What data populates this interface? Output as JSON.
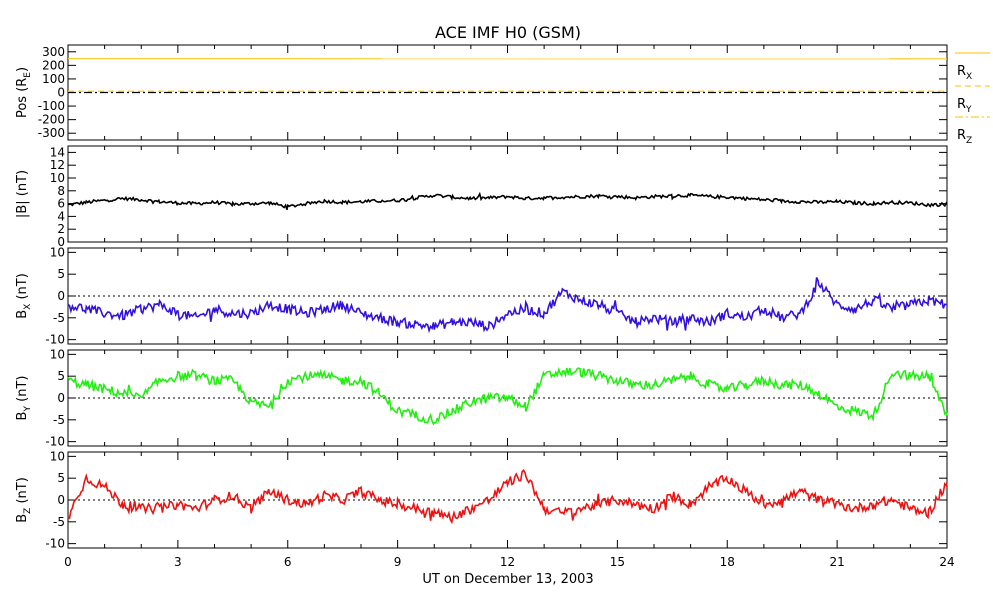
{
  "title": "ACE IMF H0 (GSM)",
  "x_axis": {
    "label": "UT on December 13, 2003",
    "ticks": [
      "0",
      "3",
      "6",
      "9",
      "12",
      "15",
      "18",
      "21",
      "24"
    ],
    "range": [
      0,
      24
    ]
  },
  "legend": {
    "items": [
      {
        "label": "R",
        "sub": "X",
        "style": "solid",
        "color": "#ffcc33"
      },
      {
        "label": "R",
        "sub": "Y",
        "style": "dashed",
        "color": "#ffcc33"
      },
      {
        "label": "R",
        "sub": "Z",
        "style": "dashdot",
        "color": "#ffcc33"
      }
    ]
  },
  "panels": [
    {
      "id": "pos",
      "ylabel_main": "Pos (R",
      "ylabel_sub": "E",
      "ylabel_end": ")",
      "ylim": [
        -350,
        350
      ],
      "yticks": [
        "300",
        "200",
        "100",
        "0",
        "-100",
        "-200",
        "-300"
      ],
      "ytick_values": [
        300,
        200,
        100,
        0,
        -100,
        -200,
        -300
      ],
      "color": "#ffcc33",
      "zero_line": false
    },
    {
      "id": "bmag",
      "ylabel_main": "|B| (nT)",
      "ylabel_sub": "",
      "ylabel_end": "",
      "ylim": [
        0,
        15
      ],
      "yticks": [
        "14",
        "12",
        "10",
        "8",
        "6",
        "4",
        "2",
        "0"
      ],
      "ytick_values": [
        14,
        12,
        10,
        8,
        6,
        4,
        2,
        0
      ],
      "color": "#000000",
      "zero_line": false
    },
    {
      "id": "bx",
      "ylabel_main": "B",
      "ylabel_sub": "X",
      "ylabel_end": " (nT)",
      "ylim": [
        -11,
        11
      ],
      "yticks": [
        "10",
        "5",
        "0",
        "-5",
        "-10"
      ],
      "ytick_values": [
        10,
        5,
        0,
        -5,
        -10
      ],
      "color": "#3311dd",
      "zero_line": true
    },
    {
      "id": "by",
      "ylabel_main": "B",
      "ylabel_sub": "Y",
      "ylabel_end": " (nT)",
      "ylim": [
        -11,
        11
      ],
      "yticks": [
        "10",
        "5",
        "0",
        "-5",
        "-10"
      ],
      "ytick_values": [
        10,
        5,
        0,
        -5,
        -10
      ],
      "color": "#22ee11",
      "zero_line": true
    },
    {
      "id": "bz",
      "ylabel_main": "B",
      "ylabel_sub": "Z",
      "ylabel_end": " (nT)",
      "ylim": [
        -11,
        11
      ],
      "yticks": [
        "10",
        "5",
        "0",
        "-5",
        "-10"
      ],
      "ytick_values": [
        10,
        5,
        0,
        -5,
        -10
      ],
      "color": "#ee1111",
      "zero_line": true
    }
  ],
  "chart_data": {
    "type": "line",
    "title": "ACE IMF H0 (GSM)",
    "xlabel": "UT on December 13, 2003",
    "xlim": [
      0,
      24
    ],
    "grid": false,
    "legend_placement": "right of top panel",
    "series": [
      {
        "panel": "pos",
        "name": "RX",
        "style": "solid",
        "x": [
          0,
          24
        ],
        "values": [
          250,
          248
        ]
      },
      {
        "panel": "pos",
        "name": "RY",
        "style": "dashed",
        "x": [
          0,
          24
        ],
        "values": [
          10,
          10
        ]
      },
      {
        "panel": "pos",
        "name": "RZ",
        "style": "dashdot",
        "x": [
          0,
          24
        ],
        "values": [
          0,
          0
        ]
      },
      {
        "panel": "bmag",
        "x": [
          0,
          0.5,
          1,
          1.5,
          2,
          2.5,
          3,
          3.5,
          4,
          4.5,
          5,
          5.5,
          6,
          6.5,
          7,
          7.5,
          8,
          8.5,
          9,
          9.5,
          10,
          10.5,
          11,
          11.5,
          12,
          12.5,
          13,
          13.5,
          14,
          14.5,
          15,
          15.5,
          16,
          16.5,
          17,
          17.5,
          18,
          18.5,
          19,
          19.5,
          20,
          20.5,
          21,
          21.5,
          22,
          22.5,
          23,
          23.5,
          24
        ],
        "values": [
          5.8,
          6.2,
          6.5,
          6.8,
          6.6,
          6.3,
          6.1,
          6.0,
          6.2,
          5.9,
          6.0,
          6.1,
          5.5,
          6.0,
          6.4,
          6.2,
          6.3,
          6.4,
          6.5,
          6.9,
          7.3,
          7.0,
          6.8,
          6.9,
          7.1,
          6.8,
          6.9,
          7.0,
          7.1,
          7.2,
          7.1,
          6.9,
          7.1,
          7.2,
          7.3,
          7.1,
          7.0,
          6.8,
          6.6,
          6.4,
          6.3,
          6.2,
          6.3,
          6.1,
          6.0,
          6.2,
          6.1,
          5.8,
          5.9
        ]
      },
      {
        "panel": "bx",
        "x": [
          0,
          0.5,
          1,
          1.5,
          2,
          2.5,
          3,
          3.5,
          4,
          4.5,
          5,
          5.5,
          6,
          6.5,
          7,
          7.5,
          8,
          8.5,
          9,
          9.5,
          10,
          10.5,
          11,
          11.5,
          12,
          12.5,
          13,
          13.5,
          14,
          14.5,
          15,
          15.5,
          16,
          16.5,
          17,
          17.5,
          18,
          18.5,
          19,
          19.5,
          20,
          20.5,
          21,
          21.5,
          22,
          22.5,
          23,
          23.5,
          24
        ],
        "values": [
          -2,
          -3,
          -4,
          -4.5,
          -3,
          -2,
          -4,
          -5,
          -3,
          -4,
          -4,
          -2,
          -3,
          -4,
          -3,
          -2,
          -4,
          -5,
          -6,
          -6.5,
          -7,
          -6,
          -6,
          -7,
          -4,
          -3,
          -4,
          1,
          -1,
          -2,
          -4,
          -6,
          -5,
          -6,
          -5,
          -6,
          -4,
          -5,
          -3,
          -5,
          -4,
          3,
          -2,
          -3,
          -1,
          -3,
          -2,
          -1,
          -2
        ]
      },
      {
        "panel": "by",
        "x": [
          0,
          0.5,
          1,
          1.5,
          2,
          2.5,
          3,
          3.5,
          4,
          4.5,
          5,
          5.5,
          6,
          6.5,
          7,
          7.5,
          8,
          8.5,
          9,
          9.5,
          10,
          10.5,
          11,
          11.5,
          12,
          12.5,
          13,
          13.5,
          14,
          14.5,
          15,
          15.5,
          16,
          16.5,
          17,
          17.5,
          18,
          18.5,
          19,
          19.5,
          20,
          20.5,
          21,
          21.5,
          22,
          22.5,
          23,
          23.5,
          24
        ],
        "values": [
          4,
          3,
          2,
          1,
          0,
          4,
          5,
          5,
          4,
          4,
          -1,
          -2,
          4,
          5,
          5,
          4,
          4,
          1,
          -3,
          -4,
          -5,
          -3,
          -1,
          0,
          0,
          -2,
          5,
          6,
          6,
          5,
          4,
          3,
          3,
          4,
          5,
          3,
          2,
          3,
          4,
          3,
          3,
          1,
          -2,
          -3,
          -4,
          6,
          5,
          5,
          -4
        ]
      },
      {
        "panel": "bz",
        "x": [
          0,
          0.5,
          1,
          1.5,
          2,
          2.5,
          3,
          3.5,
          4,
          4.5,
          5,
          5.5,
          6,
          6.5,
          7,
          7.5,
          8,
          8.5,
          9,
          9.5,
          10,
          10.5,
          11,
          11.5,
          12,
          12.5,
          13,
          13.5,
          14,
          14.5,
          15,
          15.5,
          16,
          16.5,
          17,
          17.5,
          18,
          18.5,
          19,
          19.5,
          20,
          20.5,
          21,
          21.5,
          22,
          22.5,
          23,
          23.5,
          24
        ],
        "values": [
          -4,
          5,
          3,
          -1,
          -2,
          -2,
          -1,
          -2,
          0,
          1,
          -2,
          2,
          0,
          -1,
          1,
          0,
          2,
          0,
          -1,
          -2,
          -3,
          -4,
          -2,
          0,
          4,
          6,
          -2,
          -3,
          -2,
          -1,
          0,
          -1,
          -2,
          1,
          -1,
          3,
          5,
          2,
          -1,
          0,
          2,
          0,
          -1,
          -2,
          -1,
          0,
          -2,
          -3,
          4
        ]
      }
    ]
  }
}
